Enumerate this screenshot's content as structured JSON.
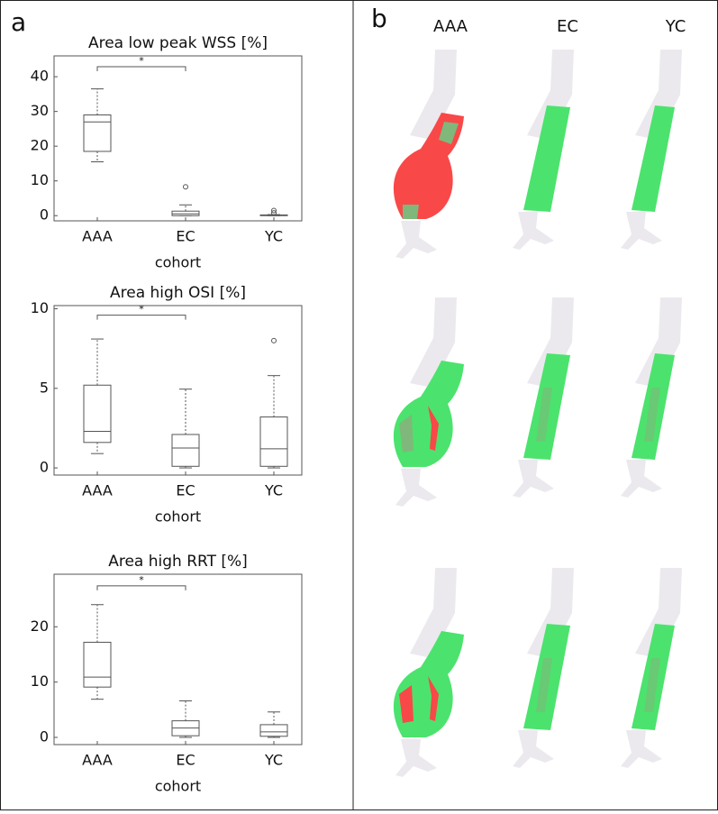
{
  "panels": {
    "a": {
      "label": "a"
    },
    "b": {
      "label": "b",
      "columns": [
        "AAA",
        "EC",
        "YC"
      ]
    }
  },
  "chart_data": [
    {
      "type": "box",
      "title": "Area low peak WSS [%]",
      "xlabel": "cohort",
      "categories": [
        "AAA",
        "EC",
        "YC"
      ],
      "ylim": [
        -1.5,
        46
      ],
      "yticks": [
        0,
        10,
        20,
        30,
        40
      ],
      "boxes": [
        {
          "min": 15.5,
          "q1": 18.5,
          "median": 27,
          "q3": 29,
          "max": 36.5,
          "outliers": []
        },
        {
          "min": 0,
          "q1": 0,
          "median": 0.5,
          "q3": 1.3,
          "max": 3.1,
          "outliers": [
            8.3
          ]
        },
        {
          "min": 0,
          "q1": 0,
          "median": 0.1,
          "q3": 0.2,
          "max": 0.3,
          "outliers": [
            1.5,
            0.8
          ]
        }
      ],
      "significance": {
        "between": [
          "AAA",
          "EC"
        ],
        "label": "*",
        "y": 42.9
      }
    },
    {
      "type": "box",
      "title": "Area high OSI [%]",
      "xlabel": "cohort",
      "categories": [
        "AAA",
        "EC",
        "YC"
      ],
      "ylim": [
        -0.45,
        10.2
      ],
      "yticks": [
        0,
        5,
        10
      ],
      "boxes": [
        {
          "min": 0.9,
          "q1": 1.6,
          "median": 2.3,
          "q3": 5.2,
          "max": 8.1,
          "outliers": []
        },
        {
          "min": 0,
          "q1": 0.1,
          "median": 1.25,
          "q3": 2.1,
          "max": 4.95,
          "outliers": []
        },
        {
          "min": 0,
          "q1": 0.1,
          "median": 1.2,
          "q3": 3.2,
          "max": 5.8,
          "outliers": [
            8.0
          ]
        }
      ],
      "significance": {
        "between": [
          "AAA",
          "EC"
        ],
        "label": "*",
        "y": 9.6
      }
    },
    {
      "type": "box",
      "title": "Area high RRT [%]",
      "xlabel": "cohort",
      "categories": [
        "AAA",
        "EC",
        "YC"
      ],
      "ylim": [
        -1.3,
        29.5
      ],
      "yticks": [
        0,
        10,
        20
      ],
      "boxes": [
        {
          "min": 6.9,
          "q1": 9.1,
          "median": 10.9,
          "q3": 17.2,
          "max": 24,
          "outliers": []
        },
        {
          "min": 0,
          "q1": 0.3,
          "median": 1.7,
          "q3": 3.0,
          "max": 6.6,
          "outliers": []
        },
        {
          "min": 0,
          "q1": 0.2,
          "median": 1.0,
          "q3": 2.3,
          "max": 4.6,
          "outliers": []
        }
      ],
      "significance": {
        "between": [
          "AAA",
          "EC"
        ],
        "label": "*",
        "y": 27.4
      }
    }
  ]
}
